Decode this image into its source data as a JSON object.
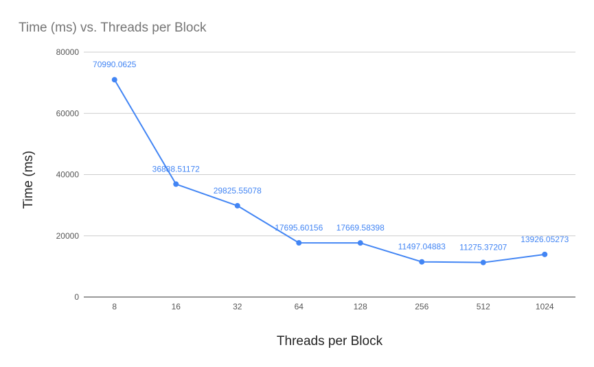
{
  "chart_data": {
    "type": "line",
    "title": "Time (ms) vs. Threads per Block",
    "xlabel": "Threads per Block",
    "ylabel": "Time (ms)",
    "categories": [
      "8",
      "16",
      "32",
      "64",
      "128",
      "256",
      "512",
      "1024"
    ],
    "series": [
      {
        "values": [
          70990.0625,
          36888.51172,
          29825.55078,
          17695.60156,
          17669.58398,
          11497.04883,
          11275.37207,
          13926.05273
        ],
        "labels": [
          "70990.0625",
          "36888.51172",
          "29825.55078",
          "17695.60156",
          "17669.58398",
          "11497.04883",
          "11275.37207",
          "13926.05273"
        ],
        "color": "#4285f4"
      }
    ],
    "ylim": [
      0,
      80000
    ],
    "yticks": [
      0,
      20000,
      40000,
      60000,
      80000
    ],
    "grid": true,
    "legend": "none"
  }
}
